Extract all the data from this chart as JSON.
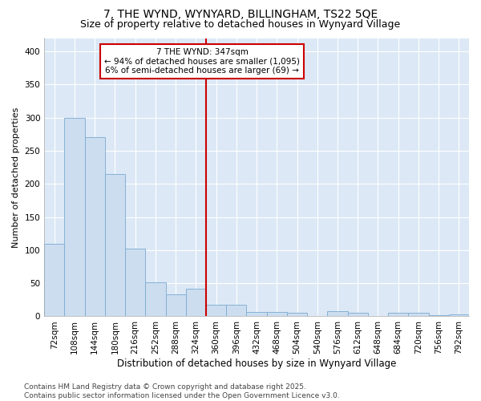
{
  "title1": "7, THE WYND, WYNYARD, BILLINGHAM, TS22 5QE",
  "title2": "Size of property relative to detached houses in Wynyard Village",
  "xlabel": "Distribution of detached houses by size in Wynyard Village",
  "ylabel": "Number of detached properties",
  "bar_values": [
    110,
    300,
    270,
    215,
    102,
    52,
    33,
    42,
    18,
    18,
    7,
    7,
    6,
    0,
    8,
    5,
    0,
    5,
    6,
    2,
    3
  ],
  "bin_labels": [
    "72sqm",
    "108sqm",
    "144sqm",
    "180sqm",
    "216sqm",
    "252sqm",
    "288sqm",
    "324sqm",
    "360sqm",
    "396sqm",
    "432sqm",
    "468sqm",
    "504sqm",
    "540sqm",
    "576sqm",
    "612sqm",
    "648sqm",
    "684sqm",
    "720sqm",
    "756sqm",
    "792sqm"
  ],
  "bar_color": "#ccddf0",
  "bar_edge_color": "#7aaad0",
  "vline_x_index": 8,
  "vline_color": "#cc0000",
  "annotation_text": "7 THE WYND: 347sqm\n← 94% of detached houses are smaller (1,095)\n6% of semi-detached houses are larger (69) →",
  "annotation_box_color": "#cc0000",
  "ylim": [
    0,
    420
  ],
  "yticks": [
    0,
    50,
    100,
    150,
    200,
    250,
    300,
    350,
    400
  ],
  "plot_bg_color": "#dce8f5",
  "fig_bg_color": "#ffffff",
  "footer_text": "Contains HM Land Registry data © Crown copyright and database right 2025.\nContains public sector information licensed under the Open Government Licence v3.0.",
  "title1_fontsize": 10,
  "title2_fontsize": 9,
  "xlabel_fontsize": 8.5,
  "ylabel_fontsize": 8,
  "tick_fontsize": 7.5,
  "annotation_fontsize": 7.5,
  "footer_fontsize": 6.5
}
